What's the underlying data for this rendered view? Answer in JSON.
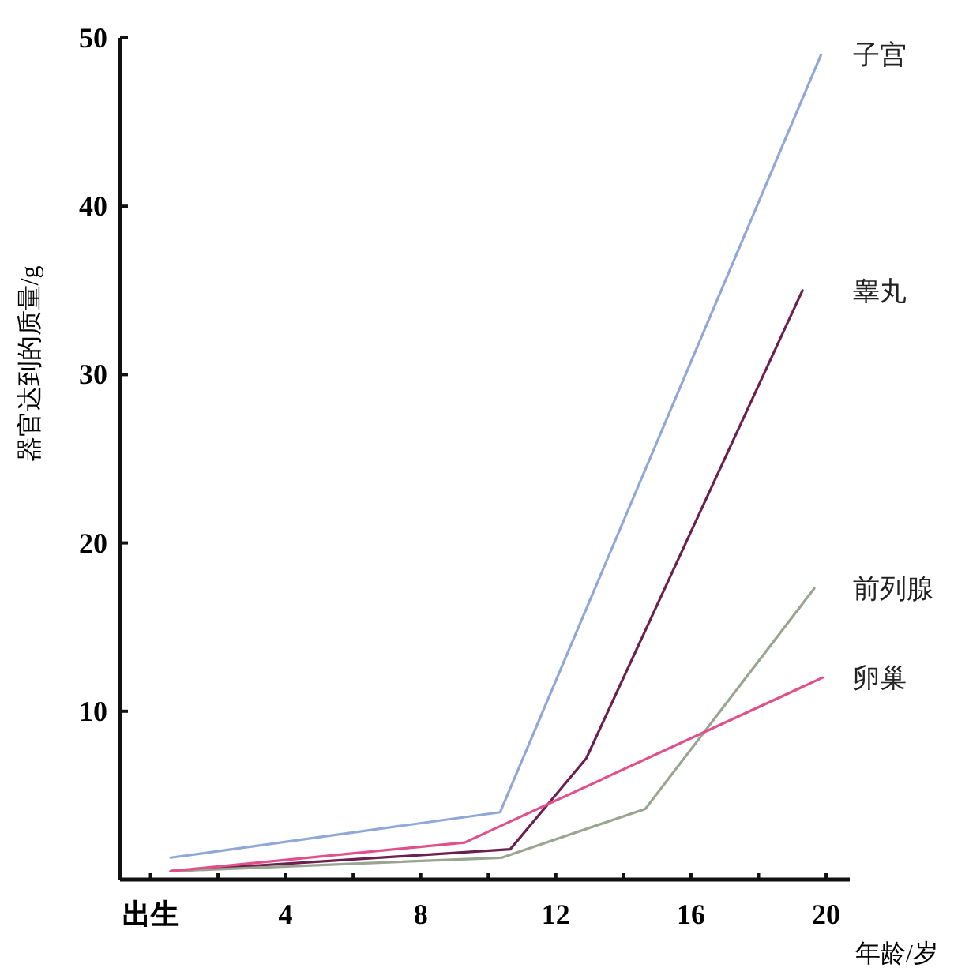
{
  "chart_data": {
    "type": "line",
    "xlabel": "年龄/岁",
    "ylabel": "器官达到的质量/g",
    "xlim": [
      -0.9,
      20.7
    ],
    "ylim": [
      0,
      50
    ],
    "xticks": [
      {
        "value": 0,
        "label": "出生"
      },
      {
        "value": 2,
        "label": null
      },
      4,
      {
        "value": 6,
        "label": null
      },
      8,
      {
        "value": 10,
        "label": null
      },
      12,
      {
        "value": 14,
        "label": null
      },
      16,
      {
        "value": 18,
        "label": null
      },
      20
    ],
    "yticks": [
      10,
      20,
      30,
      40,
      50
    ],
    "grid": false,
    "marker": "none",
    "line_style": "solid",
    "series": [
      {
        "name": "子宫",
        "color": "#8fa8d8",
        "x": [
          0.6,
          10.35,
          19.85
        ],
        "values": [
          1.3,
          4.0,
          49
        ]
      },
      {
        "name": "睾丸",
        "color": "#6b2050",
        "x": [
          0.6,
          10.65,
          12.9,
          19.3
        ],
        "values": [
          0.5,
          1.8,
          7.2,
          35
        ]
      },
      {
        "name": "前列腺",
        "color": "#9aa590",
        "x": [
          0.6,
          10.4,
          14.65,
          19.65
        ],
        "values": [
          0.5,
          1.3,
          4.2,
          17.3
        ]
      },
      {
        "name": "卵巢",
        "color": "#e0508a",
        "x": [
          0.6,
          9.3,
          19.9
        ],
        "values": [
          0.5,
          2.2,
          12.0
        ]
      }
    ]
  }
}
